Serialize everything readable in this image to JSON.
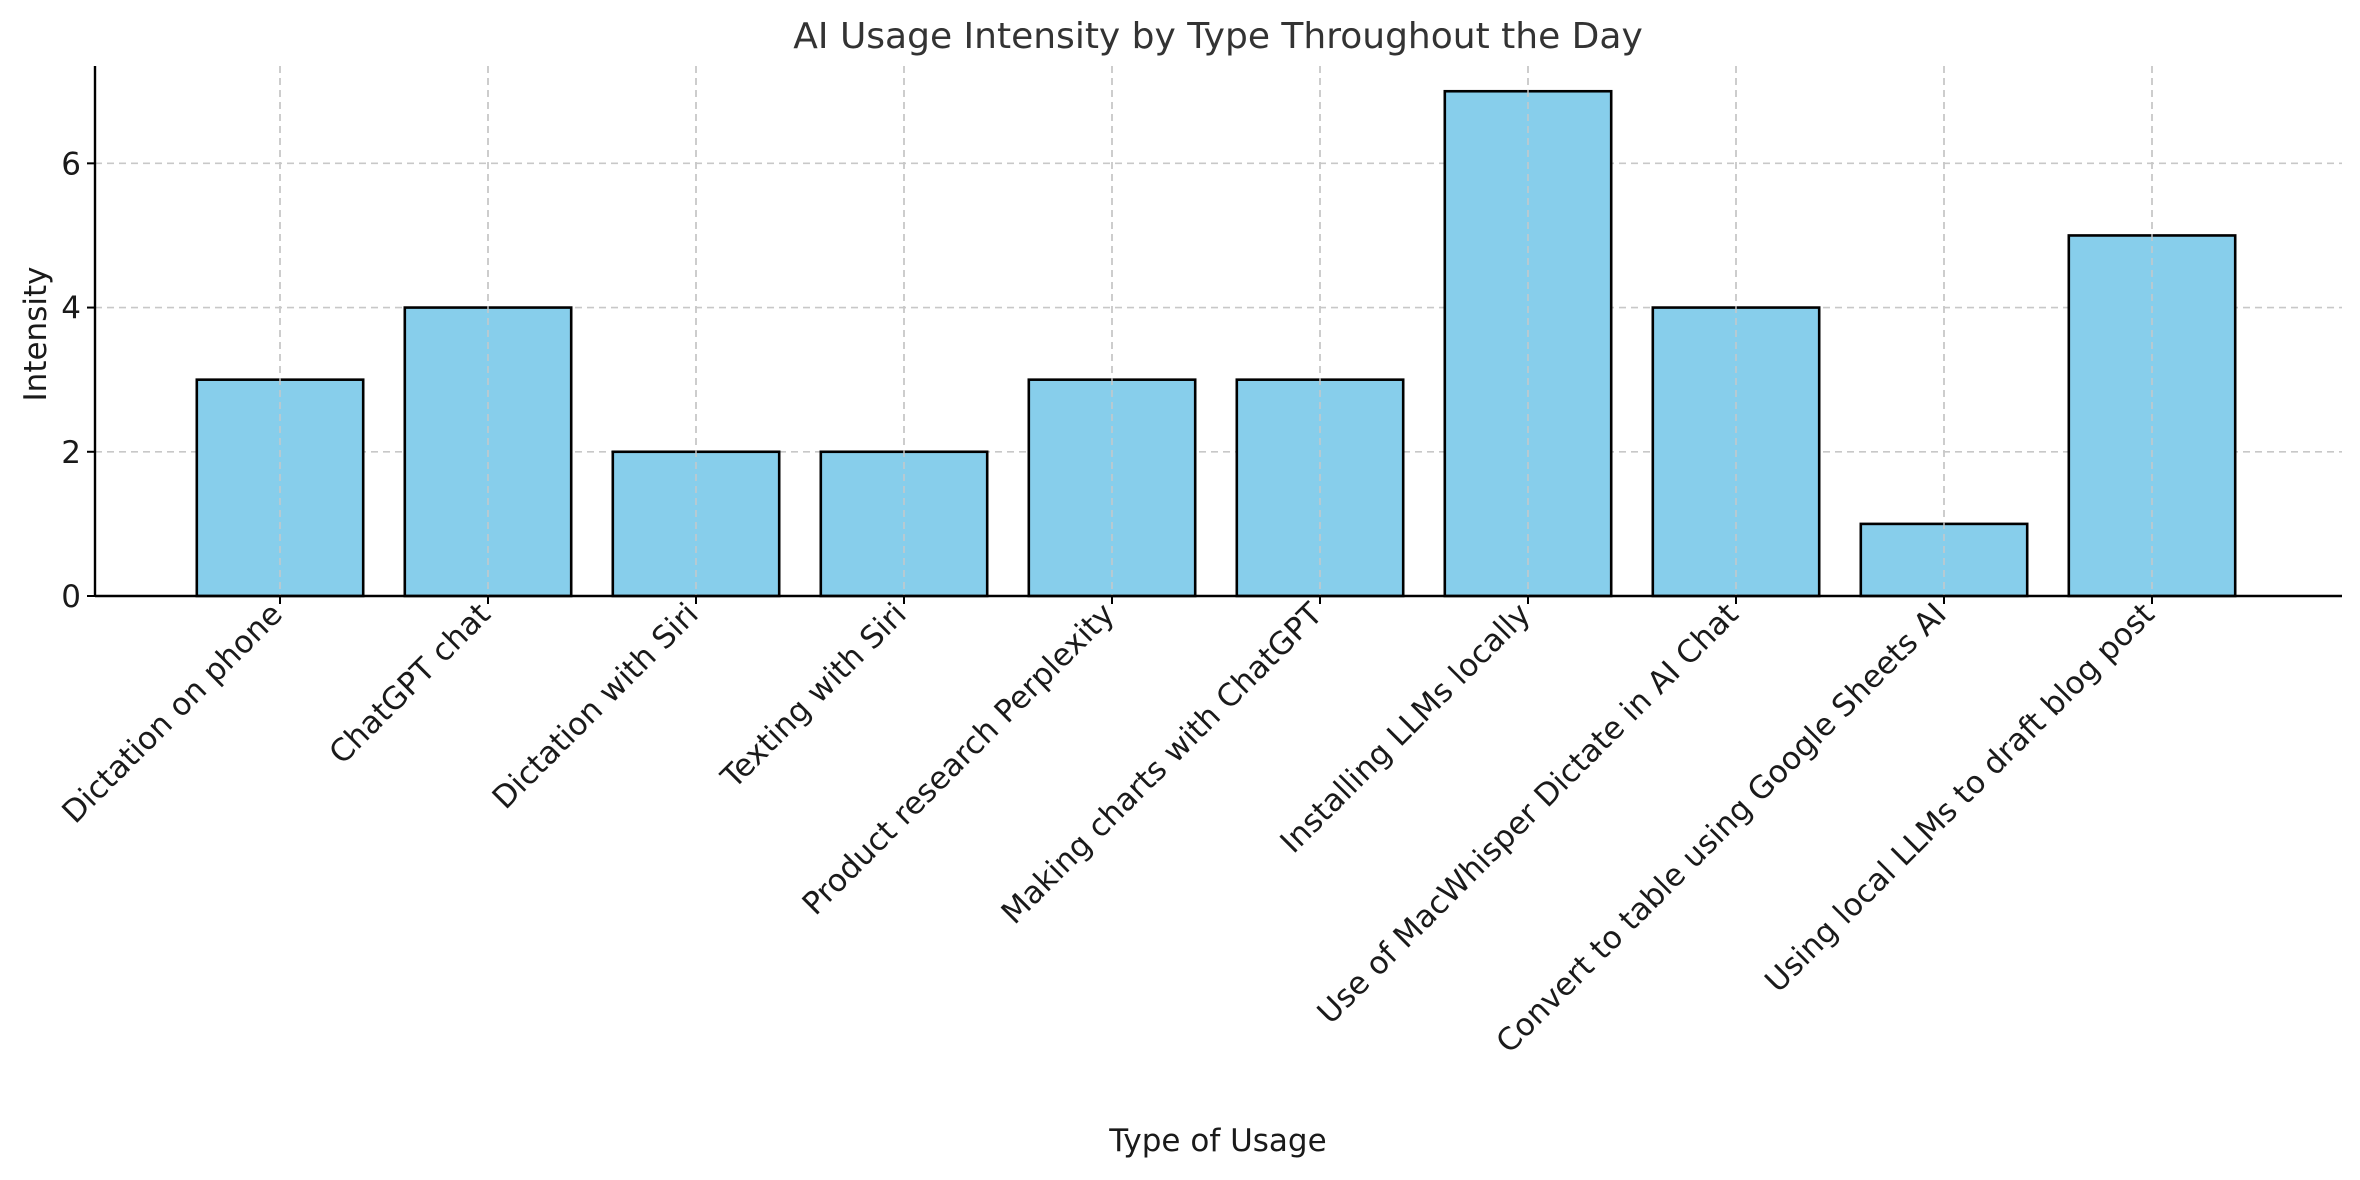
{
  "chart_data": {
    "type": "bar",
    "title": "AI Usage Intensity by Type Throughout the Day",
    "xlabel": "Type of Usage",
    "ylabel": "Intensity",
    "categories": [
      "Dictation on phone",
      "ChatGPT chat",
      "Dictation with Siri",
      "Texting with Siri",
      "Product research Perplexity",
      "Making charts with ChatGPT",
      "Installing LLMs locally",
      "Use of MacWhisper Dictate in AI Chat",
      "Convert to table using Google Sheets AI",
      "Using local LLMs to draft blog post"
    ],
    "values": [
      3,
      4,
      2,
      2,
      3,
      3,
      7,
      4,
      1,
      5
    ],
    "ylim": [
      0,
      7.35
    ],
    "yticks": [
      "0",
      "2",
      "4",
      "6"
    ],
    "grid": true,
    "bar_color": "#87CEEB",
    "edge_color": "#000000"
  }
}
